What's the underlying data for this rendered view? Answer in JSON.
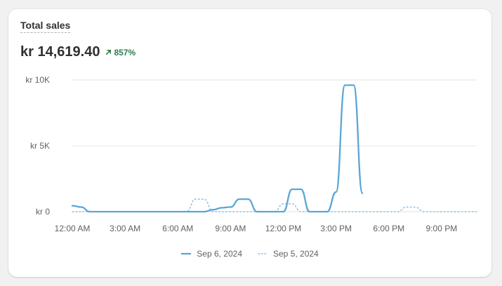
{
  "card": {
    "title": "Total sales",
    "total": "kr 14,619.40",
    "change": "857%"
  },
  "colors": {
    "primary_series": "#5aa6d6",
    "comparison_series": "#8cc3e6",
    "trend_up": "#2e7d4f"
  },
  "chart_data": {
    "type": "line",
    "title": "",
    "y_ticks": [
      {
        "value": 0,
        "label": "kr 0"
      },
      {
        "value": 5000,
        "label": "kr 5K"
      },
      {
        "value": 10000,
        "label": "kr 10K"
      }
    ],
    "x_ticks": [
      {
        "hour": 0,
        "label": "12:00 AM"
      },
      {
        "hour": 3,
        "label": "3:00 AM"
      },
      {
        "hour": 6,
        "label": "6:00 AM"
      },
      {
        "hour": 9,
        "label": "9:00 AM"
      },
      {
        "hour": 12,
        "label": "12:00 PM"
      },
      {
        "hour": 15,
        "label": "3:00 PM"
      },
      {
        "hour": 18,
        "label": "6:00 PM"
      },
      {
        "hour": 21,
        "label": "9:00 PM"
      }
    ],
    "x_range": [
      0,
      23
    ],
    "ylim": [
      0,
      10000
    ],
    "series": [
      {
        "name": "Sep 6, 2024",
        "style": "solid",
        "x": [
          0,
          0.5,
          1,
          1.5,
          2,
          3,
          4,
          5,
          6,
          7,
          7.5,
          8,
          8.5,
          9,
          9.5,
          10,
          10.5,
          11,
          11.5,
          12,
          12.5,
          13,
          13.5,
          14,
          14.5,
          15,
          15.5,
          16,
          16.5
        ],
        "y": [
          450,
          350,
          0,
          0,
          0,
          0,
          0,
          0,
          0,
          0,
          0,
          150,
          300,
          350,
          950,
          950,
          0,
          0,
          0,
          0,
          1700,
          1700,
          0,
          0,
          0,
          1500,
          9600,
          9600,
          1400
        ]
      },
      {
        "name": "Sep 5, 2024",
        "style": "dotted",
        "x": [
          0,
          1,
          2,
          3,
          4,
          5,
          6,
          6.5,
          7,
          7.5,
          8,
          9,
          10,
          11,
          11.5,
          12,
          12.5,
          13,
          14,
          15,
          16,
          17,
          18,
          18.5,
          19,
          19.5,
          20,
          21,
          22,
          23
        ],
        "y": [
          0,
          0,
          0,
          0,
          0,
          0,
          0,
          0,
          950,
          950,
          0,
          0,
          0,
          0,
          0,
          600,
          600,
          0,
          0,
          0,
          0,
          0,
          0,
          0,
          350,
          350,
          0,
          0,
          0,
          0
        ]
      }
    ],
    "legend_position": "bottom-center",
    "grid": true
  }
}
